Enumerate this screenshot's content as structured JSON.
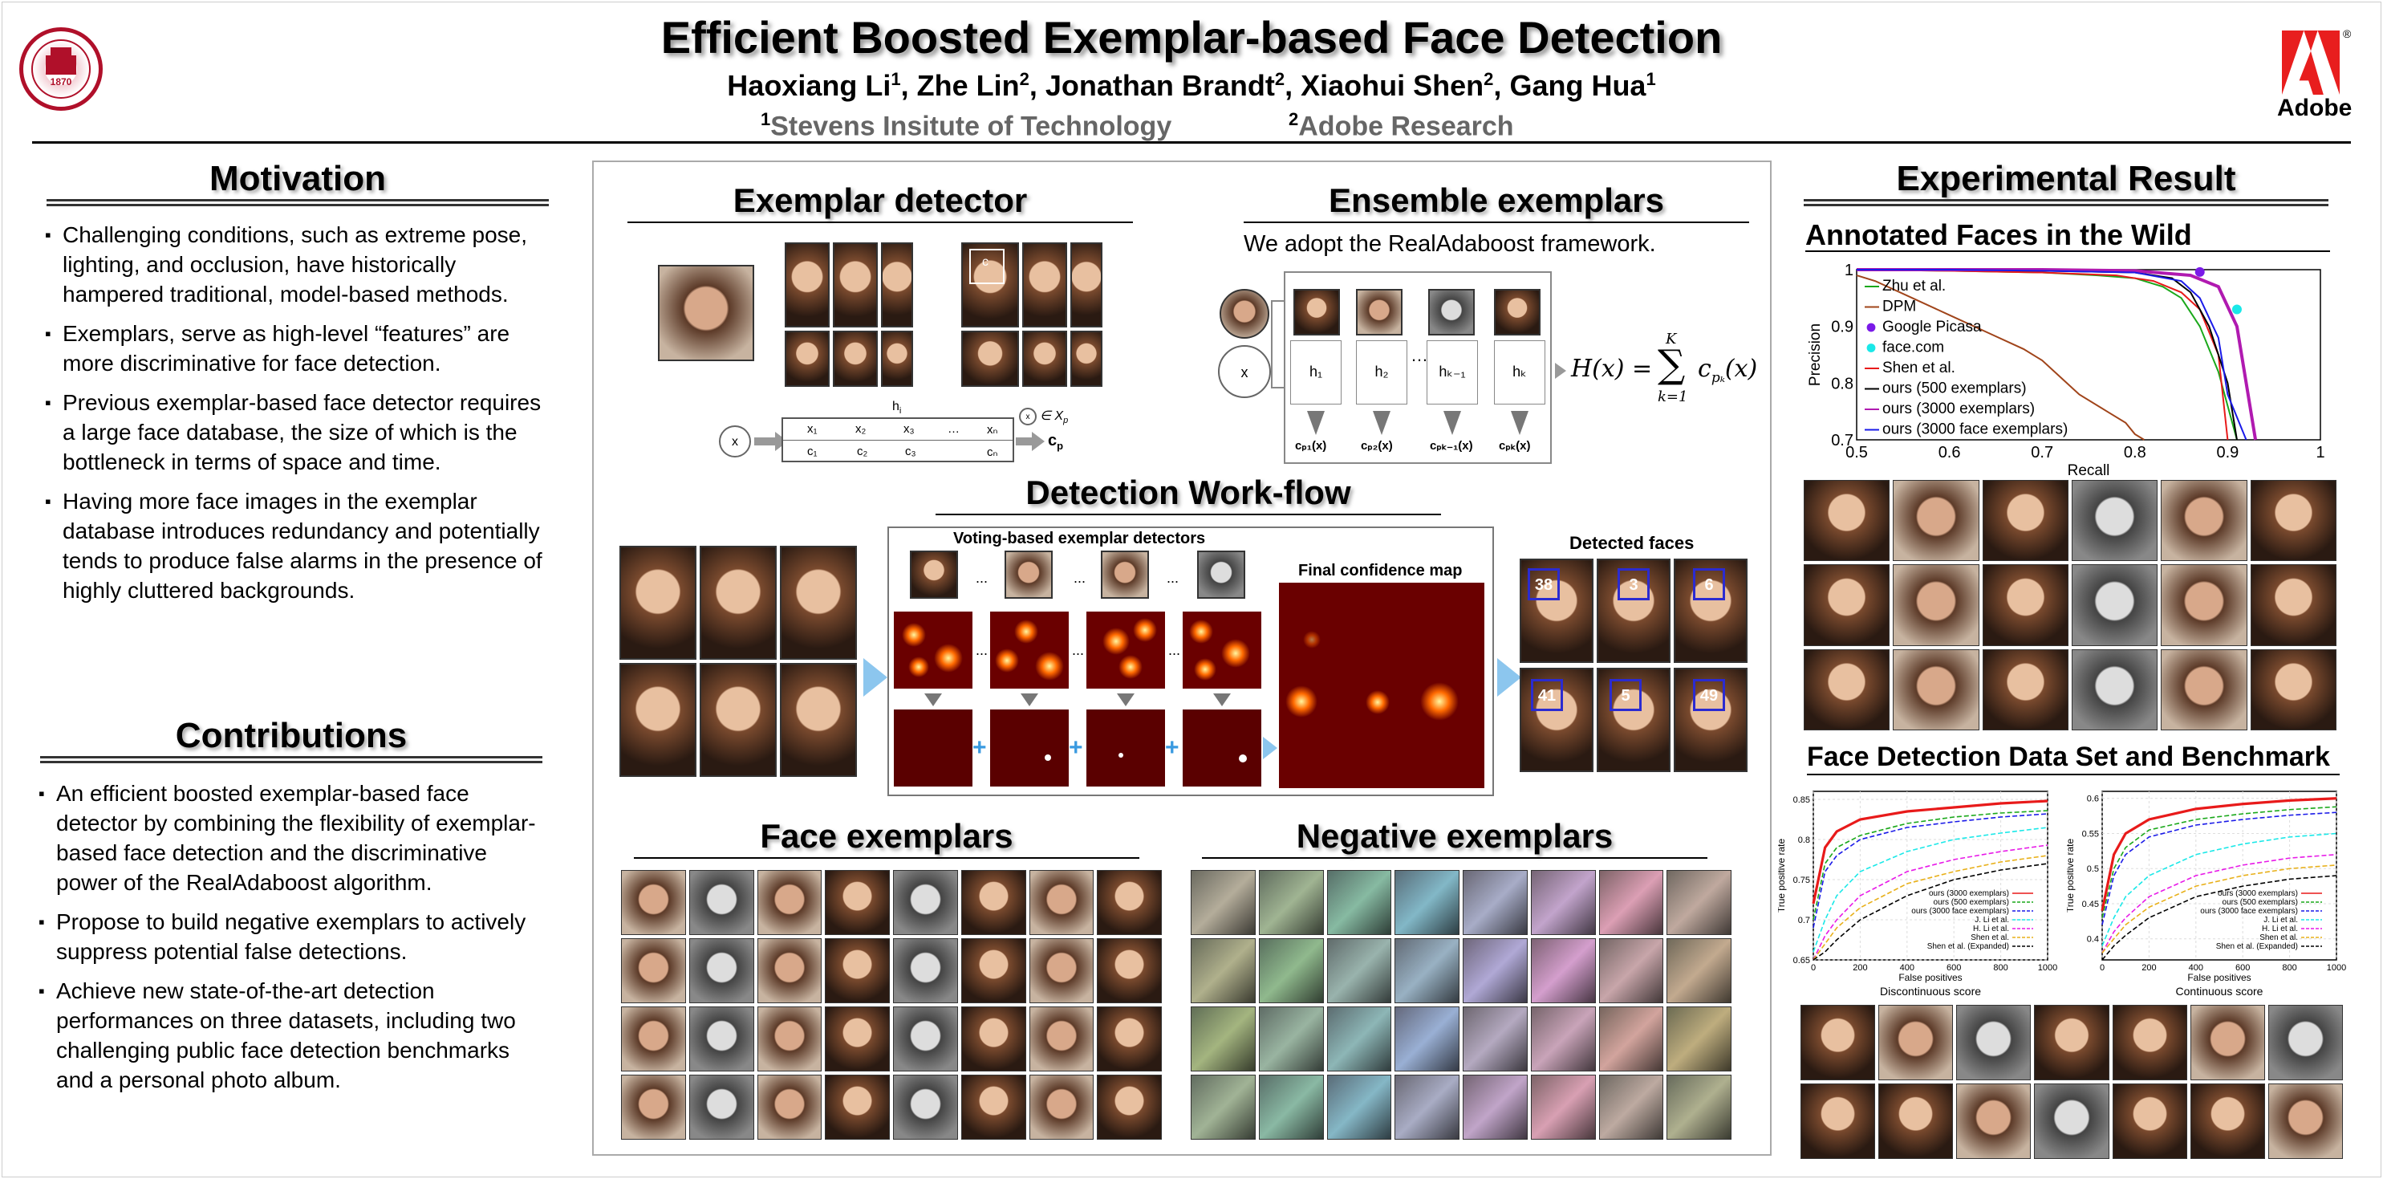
{
  "header": {
    "title": "Efficient Boosted Exemplar-based Face Detection",
    "authors": [
      {
        "name": "Haoxiang Li",
        "aff": "1"
      },
      {
        "name": "Zhe Lin",
        "aff": "2"
      },
      {
        "name": "Jonathan Brandt",
        "aff": "2"
      },
      {
        "name": "Xiaohui Shen",
        "aff": "2"
      },
      {
        "name": "Gang Hua",
        "aff": "1"
      }
    ],
    "aff1_num": "1",
    "aff1": "Stevens Insitute of Technology",
    "aff2_num": "2",
    "aff2": "Adobe Research",
    "seal_year": "1870",
    "adobe_label": "Adobe",
    "adobe_mark": "®"
  },
  "motivation": {
    "title": "Motivation",
    "items": [
      "Challenging conditions, such as extreme pose, lighting, and occlusion, have historically hampered traditional, model-based methods.",
      "Exemplars, serve as high-level “features” are more discriminative for face detection.",
      "Previous exemplar-based face detector requires a large face database, the size of which is the bottleneck in terms of space and time.",
      "Having more face images in the exemplar database introduces redundancy and potentially tends to produce false alarms in the presence of highly cluttered backgrounds."
    ]
  },
  "contributions": {
    "title": "Contributions",
    "items": [
      "An efficient boosted exemplar-based face detector by combining the flexibility of exemplar-based face detection and the discriminative power of the RealAdaboost algorithm.",
      "Propose to build negative exemplars to actively suppress potential false detections.",
      "Achieve new state-of-the-art detection performances on three datasets, including two challenging public face detection benchmarks and a personal photo album."
    ]
  },
  "middle": {
    "exemplar_detector": {
      "title": "Exemplar detector",
      "x_label": "x",
      "h_label": "h",
      "h_sub": "i",
      "c_label": "c",
      "c_sub": "p",
      "mem_label": "∈ X",
      "mem_sub": "p",
      "bins": [
        "x₁",
        "x₂",
        "x₃",
        "…",
        "xₙ"
      ],
      "cbins": [
        "c₁",
        "c₂",
        "c₃",
        "cₙ"
      ],
      "crop_label": "c"
    },
    "ensemble": {
      "title": "Ensemble exemplars",
      "subtitle": "We adopt the RealAdaboost framework.",
      "x_label": "x",
      "weak": [
        "h₁",
        "h₂",
        "hₖ₋₁",
        "hₖ"
      ],
      "outs": [
        "cₚ₁(x)",
        "cₚ₂(x)",
        "cₚₖ₋₁(x)",
        "cₚₖ(x)"
      ],
      "dots": "…",
      "formula_lhs": "H(x) =",
      "formula_sum": "∑",
      "formula_top": "K",
      "formula_bot": "k=1",
      "formula_rhs": "c",
      "formula_sub": "pₖ",
      "formula_arg": "(x)"
    },
    "workflow": {
      "title": "Detection Work-flow",
      "voting": "Voting-based exemplar detectors",
      "final": "Final confidence map",
      "detected": "Detected faces",
      "dots": "...",
      "counts": [
        "38",
        "3",
        "6",
        "41",
        "5",
        "49"
      ]
    },
    "face_exemplars": {
      "title": "Face exemplars"
    },
    "negative_exemplars": {
      "title": "Negative exemplars"
    }
  },
  "results": {
    "title": "Experimental Result",
    "afw_title": "Annotated Faces in the Wild",
    "fddb_title": "Face Detection Data Set and Benchmark",
    "fddb_left_caption": "Discontinuous score",
    "fddb_right_caption": "Continuous score"
  },
  "chart_data": [
    {
      "type": "line",
      "ylabel": "Precision",
      "xlabel": "Recall",
      "xlim": [
        0.5,
        1
      ],
      "ylim": [
        0.7,
        1
      ],
      "xticks": [
        "0.5",
        "0.6",
        "0.7",
        "0.8",
        "0.9",
        "1"
      ],
      "yticks": [
        "1",
        "0.9",
        "0.8",
        "0.7"
      ],
      "legend_position": "top-left",
      "series": [
        {
          "name": "Zhu et al.",
          "color": "#1aa81a",
          "x": [
            0.5,
            0.6,
            0.7,
            0.76,
            0.8,
            0.83,
            0.85,
            0.87,
            0.89,
            0.91
          ],
          "y": [
            1,
            0.998,
            0.995,
            0.99,
            0.985,
            0.97,
            0.95,
            0.9,
            0.82,
            0.7
          ]
        },
        {
          "name": "DPM",
          "color": "#a0441a",
          "x": [
            0.5,
            0.52,
            0.56,
            0.6,
            0.64,
            0.68,
            0.7,
            0.72,
            0.74,
            0.77,
            0.79,
            0.8,
            0.81
          ],
          "y": [
            0.99,
            0.98,
            0.95,
            0.92,
            0.89,
            0.86,
            0.84,
            0.81,
            0.78,
            0.75,
            0.73,
            0.71,
            0.7
          ]
        },
        {
          "name": "Google Picasa",
          "color": "#7a1ae8",
          "marker": true,
          "x": [
            0.87
          ],
          "y": [
            0.996
          ]
        },
        {
          "name": "face.com",
          "color": "#1ae8e8",
          "marker": true,
          "x": [
            0.91
          ],
          "y": [
            0.93
          ]
        },
        {
          "name": "Shen et al.",
          "color": "#e81a1a",
          "x": [
            0.5,
            0.6,
            0.7,
            0.78,
            0.82,
            0.85,
            0.87,
            0.89,
            0.9
          ],
          "y": [
            1,
            0.998,
            0.995,
            0.99,
            0.98,
            0.96,
            0.93,
            0.85,
            0.7
          ]
        },
        {
          "name": "ours (500 exemplars)",
          "color": "#000000",
          "x": [
            0.5,
            0.6,
            0.7,
            0.8,
            0.84,
            0.86,
            0.88,
            0.9,
            0.91
          ],
          "y": [
            1,
            1,
            0.998,
            0.995,
            0.985,
            0.96,
            0.9,
            0.8,
            0.7
          ]
        },
        {
          "name": "ours (3000 exemplars)",
          "color": "#b01ab0",
          "x": [
            0.5,
            0.6,
            0.7,
            0.8,
            0.86,
            0.89,
            0.91,
            0.92,
            0.93
          ],
          "y": [
            1,
            1,
            1,
            0.998,
            0.99,
            0.97,
            0.9,
            0.8,
            0.7
          ]
        },
        {
          "name": "ours (3000 face exemplars)",
          "color": "#1a1ae8",
          "x": [
            0.5,
            0.6,
            0.7,
            0.8,
            0.85,
            0.87,
            0.89,
            0.9,
            0.92
          ],
          "y": [
            1,
            1,
            0.998,
            0.995,
            0.98,
            0.95,
            0.88,
            0.78,
            0.7
          ]
        }
      ]
    },
    {
      "type": "line",
      "ylabel": "True positive rate",
      "xlabel": "False positives",
      "caption": "Discontinuous score",
      "xlim": [
        0,
        1000
      ],
      "ylim": [
        0.65,
        0.86
      ],
      "xticks": [
        "0",
        "200",
        "400",
        "600",
        "800",
        "1000"
      ],
      "yticks": [
        "0.85",
        "0.8",
        "0.75",
        "0.7",
        "0.65"
      ],
      "legend_position": "bottom-right",
      "series": [
        {
          "name": "ours (3000 exemplars)",
          "color": "#e81a1a",
          "x": [
            0,
            50,
            100,
            200,
            400,
            600,
            800,
            1000
          ],
          "y": [
            0.72,
            0.79,
            0.81,
            0.825,
            0.835,
            0.84,
            0.845,
            0.848
          ]
        },
        {
          "name": "ours (500 exemplars)",
          "color": "#1aa81a",
          "dash": true,
          "x": [
            0,
            50,
            100,
            200,
            400,
            600,
            800,
            1000
          ],
          "y": [
            0.7,
            0.77,
            0.79,
            0.805,
            0.82,
            0.828,
            0.833,
            0.836
          ]
        },
        {
          "name": "ours (3000 face exemplars)",
          "color": "#1a1ae8",
          "dash": true,
          "x": [
            0,
            50,
            100,
            200,
            400,
            600,
            800,
            1000
          ],
          "y": [
            0.69,
            0.76,
            0.78,
            0.8,
            0.815,
            0.822,
            0.828,
            0.832
          ]
        },
        {
          "name": "J. Li et al.",
          "color": "#1ae8e8",
          "dash": true,
          "x": [
            0,
            50,
            100,
            200,
            400,
            600,
            800,
            1000
          ],
          "y": [
            0.66,
            0.7,
            0.73,
            0.76,
            0.785,
            0.8,
            0.808,
            0.815
          ]
        },
        {
          "name": "H. Li et al.",
          "color": "#e81ae8",
          "dash": true,
          "x": [
            0,
            50,
            100,
            200,
            400,
            600,
            800,
            1000
          ],
          "y": [
            0.65,
            0.68,
            0.7,
            0.73,
            0.76,
            0.775,
            0.785,
            0.793
          ]
        },
        {
          "name": "Shen et al.",
          "color": "#e8b01a",
          "dash": true,
          "x": [
            0,
            50,
            100,
            200,
            400,
            600,
            800,
            1000
          ],
          "y": [
            0.65,
            0.67,
            0.69,
            0.715,
            0.745,
            0.76,
            0.772,
            0.78
          ]
        },
        {
          "name": "Shen et al. (Expanded)",
          "color": "#000000",
          "dash": true,
          "x": [
            0,
            50,
            100,
            200,
            400,
            600,
            800,
            1000
          ],
          "y": [
            0.65,
            0.66,
            0.675,
            0.7,
            0.73,
            0.75,
            0.762,
            0.77
          ]
        }
      ]
    },
    {
      "type": "line",
      "ylabel": "True positive rate",
      "xlabel": "False positives",
      "caption": "Continuous score",
      "xlim": [
        0,
        1000
      ],
      "ylim": [
        0.37,
        0.61
      ],
      "xticks": [
        "0",
        "200",
        "400",
        "600",
        "800",
        "1000"
      ],
      "yticks": [
        "0.6",
        "0.55",
        "0.5",
        "0.45",
        "0.4"
      ],
      "legend_position": "bottom-right",
      "series": [
        {
          "name": "ours (3000 exemplars)",
          "color": "#e81a1a",
          "x": [
            0,
            50,
            100,
            200,
            400,
            600,
            800,
            1000
          ],
          "y": [
            0.44,
            0.52,
            0.55,
            0.57,
            0.585,
            0.592,
            0.597,
            0.6
          ]
        },
        {
          "name": "ours (500 exemplars)",
          "color": "#1aa81a",
          "dash": true,
          "x": [
            0,
            50,
            100,
            200,
            400,
            600,
            800,
            1000
          ],
          "y": [
            0.43,
            0.5,
            0.53,
            0.555,
            0.57,
            0.578,
            0.584,
            0.588
          ]
        },
        {
          "name": "ours (3000 face exemplars)",
          "color": "#1a1ae8",
          "dash": true,
          "x": [
            0,
            50,
            100,
            200,
            400,
            600,
            800,
            1000
          ],
          "y": [
            0.42,
            0.49,
            0.52,
            0.545,
            0.562,
            0.57,
            0.576,
            0.58
          ]
        },
        {
          "name": "J. Li et al.",
          "color": "#1ae8e8",
          "dash": true,
          "x": [
            0,
            50,
            100,
            200,
            400,
            600,
            800,
            1000
          ],
          "y": [
            0.39,
            0.43,
            0.46,
            0.49,
            0.52,
            0.535,
            0.545,
            0.55
          ]
        },
        {
          "name": "H. Li et al.",
          "color": "#e81ae8",
          "dash": true,
          "x": [
            0,
            50,
            100,
            200,
            400,
            600,
            800,
            1000
          ],
          "y": [
            0.38,
            0.41,
            0.43,
            0.46,
            0.49,
            0.505,
            0.515,
            0.52
          ]
        },
        {
          "name": "Shen et al.",
          "color": "#e8b01a",
          "dash": true,
          "x": [
            0,
            50,
            100,
            200,
            400,
            600,
            800,
            1000
          ],
          "y": [
            0.38,
            0.4,
            0.42,
            0.445,
            0.475,
            0.49,
            0.5,
            0.505
          ]
        },
        {
          "name": "Shen et al. (Expanded)",
          "color": "#000000",
          "dash": true,
          "x": [
            0,
            50,
            100,
            200,
            400,
            600,
            800,
            1000
          ],
          "y": [
            0.37,
            0.39,
            0.405,
            0.43,
            0.46,
            0.475,
            0.485,
            0.49
          ]
        }
      ]
    }
  ]
}
